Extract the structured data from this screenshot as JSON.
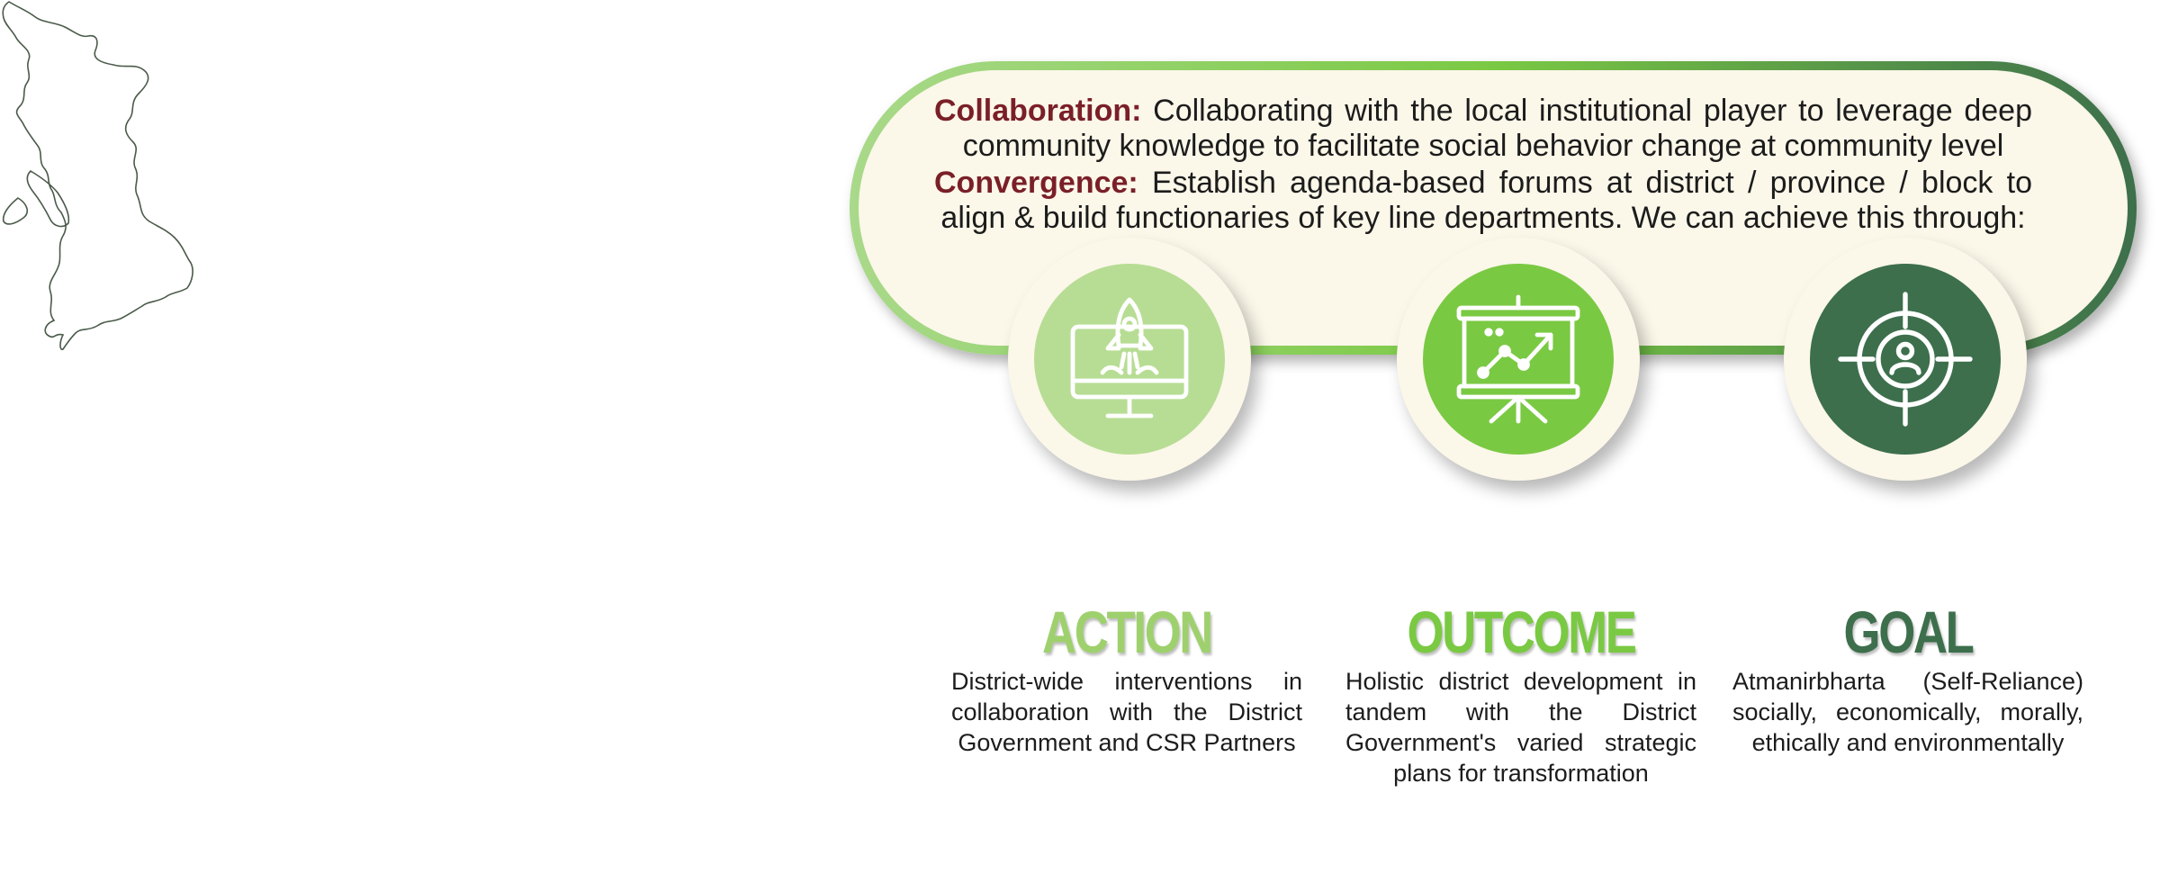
{
  "colors": {
    "accent_dark_red": "#7a1f28",
    "light_green": "#b7dd94",
    "mid_green": "#7ac943",
    "dark_green": "#3d6f4c",
    "cream": "#fbf7e9"
  },
  "statements": {
    "collaboration": {
      "keyword": "Collaboration:",
      "text": "Collaborating with the local institutional player to leverage deep community knowledge to facilitate social behavior change at community level"
    },
    "convergence": {
      "keyword": "Convergence:",
      "text": "Establish agenda-based forums at district / province / block to align & build functionaries of key line departments. We can achieve this through:"
    }
  },
  "stages": [
    {
      "title": "ACTION",
      "icon": "rocket-monitor-icon",
      "description": "District-wide interventions in collaboration with the District Government and CSR Partners"
    },
    {
      "title": "OUTCOME",
      "icon": "presentation-chart-icon",
      "description": "Holistic district development in tandem with the District Government's varied strategic plans for transformation"
    },
    {
      "title": "GOAL",
      "icon": "target-person-icon",
      "description": "Atmanirbharta (Self-Reliance) socially, economically, morally, ethically and environmentally"
    }
  ]
}
